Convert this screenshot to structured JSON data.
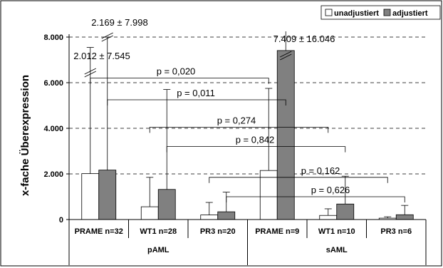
{
  "chart_data": {
    "type": "bar",
    "ylabel": "x-fache Überexpression",
    "ylim": [
      0,
      8000
    ],
    "yticks": [
      "0",
      "2.000",
      "4.000",
      "6.000",
      "8.000"
    ],
    "grid": "dashed horizontal",
    "legend_position": "top-right",
    "categories": [
      "PRAME n=32",
      "WT1 n=28",
      "PR3 n=20",
      "PRAME n=9",
      "WT1 n=10",
      "PR3 n=6"
    ],
    "groups": [
      {
        "label": "pAML",
        "categories": [
          0,
          1,
          2
        ]
      },
      {
        "label": "sAML",
        "categories": [
          3,
          4,
          5
        ]
      }
    ],
    "series": [
      {
        "name": "unadjustiert",
        "color": "#ffffff",
        "values": [
          2012,
          560,
          200,
          2150,
          180,
          60
        ],
        "error_upper": [
          7545,
          1850,
          750,
          5750,
          470,
          120
        ]
      },
      {
        "name": "adjustiert",
        "color": "#808080",
        "values": [
          2169,
          1320,
          340,
          7409,
          680,
          210
        ],
        "error_upper": [
          7998,
          5700,
          1200,
          16046,
          1900,
          620
        ]
      }
    ],
    "annotations": [
      {
        "text": "2.169 ± 7.998"
      },
      {
        "text": "2.012 ± 7.545"
      },
      {
        "text": "7.409 ± 16.046"
      }
    ],
    "comparisons": [
      {
        "text": "p = 0,020",
        "from": 0,
        "to": 3,
        "level": 6200
      },
      {
        "text": "p = 0,011",
        "from": 0,
        "to": 3,
        "level": 5250
      },
      {
        "text": "p = 0,274",
        "from": 1,
        "to": 4,
        "level": 4050
      },
      {
        "text": "p = 0,842",
        "from": 1,
        "to": 4,
        "level": 3200
      },
      {
        "text": "p = 0,162",
        "from": 2,
        "to": 5,
        "level": 1850
      },
      {
        "text": "p = 0,626",
        "from": 2,
        "to": 5,
        "level": 1000
      }
    ]
  }
}
